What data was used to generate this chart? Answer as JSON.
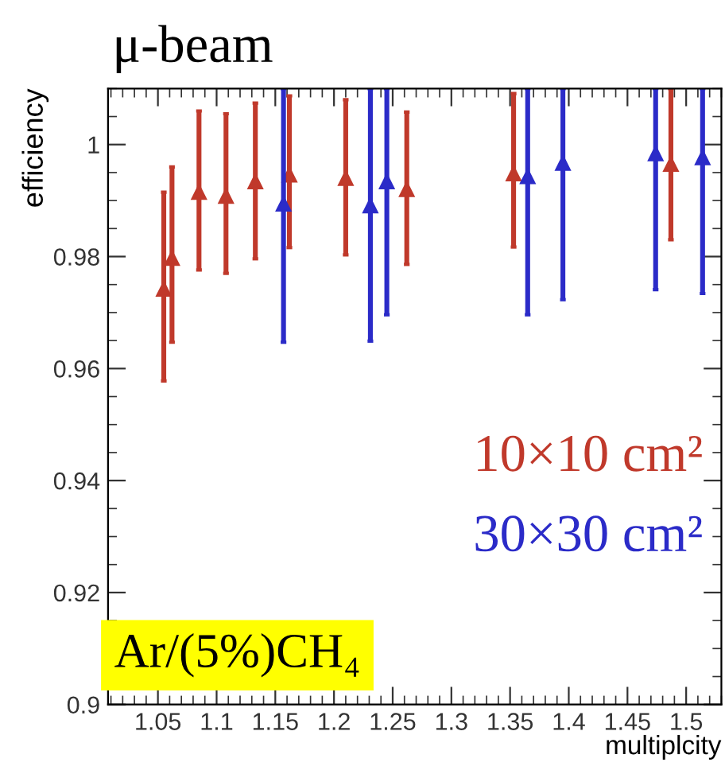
{
  "chart_data": {
    "type": "scatter",
    "title": "μ-beam",
    "xlabel": "multiplcity",
    "ylabel": "efficiency",
    "xlim": [
      1.0075,
      1.53
    ],
    "ylim": [
      0.9,
      1.01
    ],
    "xticks": [
      1.05,
      1.1,
      1.15,
      1.2,
      1.25,
      1.3,
      1.35,
      1.4,
      1.45,
      1.5
    ],
    "yticks": [
      0.9,
      0.92,
      0.94,
      0.96,
      0.98,
      1
    ],
    "marker": "triangle",
    "legend": "right",
    "grid": false,
    "annotations": [
      "Ar/(5%)CH₄"
    ],
    "series": [
      {
        "name": "10×10 cm²",
        "color": "#c0392b",
        "x": [
          1.055,
          1.062,
          1.085,
          1.108,
          1.133,
          1.162,
          1.21,
          1.262,
          1.353,
          1.487
        ],
        "values": [
          0.9742,
          0.9797,
          0.9915,
          0.9908,
          0.9934,
          0.9946,
          0.994,
          0.992,
          0.9948,
          0.9965
        ],
        "errors": [
          [
            0.9578,
            0.9915
          ],
          [
            0.9647,
            0.996
          ],
          [
            0.9776,
            1.006
          ],
          [
            0.977,
            1.0055
          ],
          [
            0.9796,
            1.0074
          ],
          [
            0.9816,
            1.0087
          ],
          [
            0.9803,
            1.008
          ],
          [
            0.9786,
            1.0058
          ],
          [
            0.9817,
            1.0091
          ],
          [
            0.983,
            1.01
          ]
        ]
      },
      {
        "name": "30×30 cm²",
        "color": "#2b2bc8",
        "x": [
          1.157,
          1.231,
          1.245,
          1.365,
          1.395,
          1.474,
          1.514
        ],
        "values": [
          0.9894,
          0.9891,
          0.9934,
          0.9943,
          0.9967,
          0.9984,
          0.9977
        ],
        "errors": [
          [
            0.9647,
            1.01
          ],
          [
            0.9649,
            1.01
          ],
          [
            0.9696,
            1.01
          ],
          [
            0.9696,
            1.01
          ],
          [
            0.9723,
            1.01
          ],
          [
            0.9741,
            1.01
          ],
          [
            0.9734,
            1.01
          ]
        ]
      }
    ]
  }
}
